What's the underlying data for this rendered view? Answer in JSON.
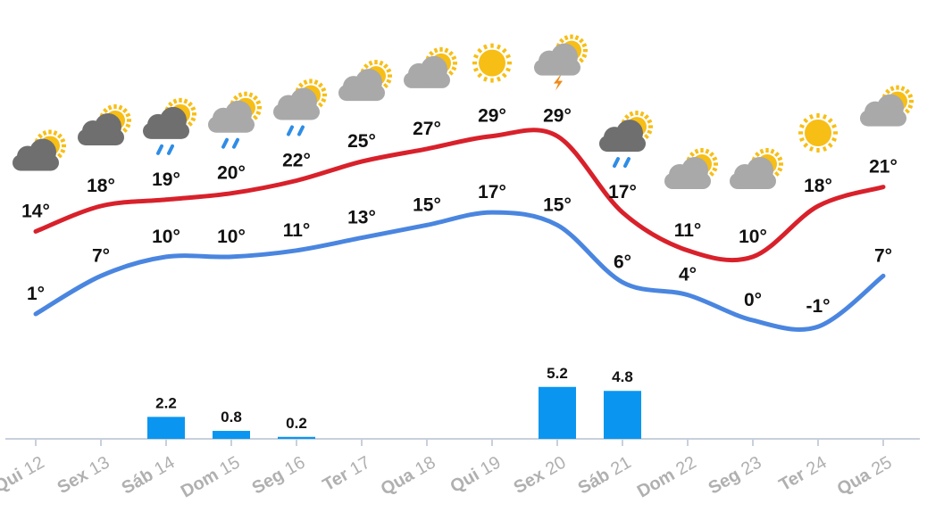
{
  "chart_data": {
    "type": "line",
    "categories": [
      {
        "weekday": "Qui",
        "day": "12"
      },
      {
        "weekday": "Sex",
        "day": "13"
      },
      {
        "weekday": "Sáb",
        "day": "14"
      },
      {
        "weekday": "Dom",
        "day": "15"
      },
      {
        "weekday": "Seg",
        "day": "16"
      },
      {
        "weekday": "Ter",
        "day": "17"
      },
      {
        "weekday": "Qua",
        "day": "18"
      },
      {
        "weekday": "Qui",
        "day": "19"
      },
      {
        "weekday": "Sex",
        "day": "20"
      },
      {
        "weekday": "Sáb",
        "day": "21"
      },
      {
        "weekday": "Dom",
        "day": "22"
      },
      {
        "weekday": "Seg",
        "day": "23"
      },
      {
        "weekday": "Ter",
        "day": "24"
      },
      {
        "weekday": "Qua",
        "day": "25"
      }
    ],
    "series": [
      {
        "key": "max",
        "color": "#d8212b",
        "values": [
          14,
          18,
          19,
          20,
          22,
          25,
          27,
          29,
          29,
          17,
          11,
          10,
          18,
          21
        ]
      },
      {
        "key": "min",
        "color": "#4a86e0",
        "values": [
          1,
          7,
          10,
          10,
          11,
          13,
          15,
          17,
          15,
          6,
          4,
          0,
          -1,
          7
        ]
      }
    ],
    "temp_labels": {
      "max": [
        "14°",
        "18°",
        "19°",
        "20°",
        "22°",
        "25°",
        "27°",
        "29°",
        "29°",
        "17°",
        "11°",
        "10°",
        "18°",
        "21°"
      ],
      "min": [
        "1°",
        "7°",
        "10°",
        "10°",
        "11°",
        "13°",
        "15°",
        "17°",
        "15°",
        "6°",
        "4°",
        "0°",
        "-1°",
        "7°"
      ]
    },
    "precipitation": {
      "color": "#0a96f0",
      "values": [
        0,
        0,
        2.2,
        0.8,
        0.2,
        0,
        0,
        0,
        5.2,
        4.8,
        0,
        0,
        0,
        0
      ],
      "labels": [
        "",
        "",
        "2.2",
        "0.8",
        "0.2",
        "",
        "",
        "",
        "5.2",
        "4.8",
        "",
        "",
        "",
        ""
      ]
    },
    "icons": [
      "partly-cloudy-dark",
      "partly-cloudy-dark",
      "rain-dark",
      "rain-light",
      "rain-light",
      "partly-cloudy-light",
      "partly-cloudy-light",
      "sun",
      "thunder",
      "rain-dark",
      "partly-cloudy-light",
      "partly-cloudy-light",
      "sun",
      "partly-cloudy-light"
    ],
    "colors": {
      "sun": "#f7be16",
      "cloud_dark": "#6f6f6f",
      "cloud_light": "#a9a9a9",
      "rain": "#2e8de6",
      "bolt": "#f08a1a",
      "axis": "#c8d0dc",
      "day_label": "#b0b0b0"
    },
    "title": "",
    "xlabel": "",
    "ylabel": "",
    "legend": "none",
    "grid": false
  }
}
